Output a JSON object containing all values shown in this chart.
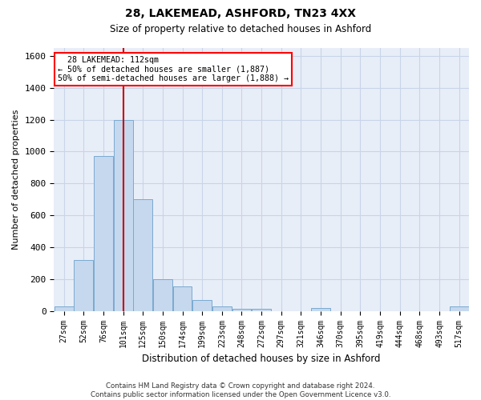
{
  "title_line1": "28, LAKEMEAD, ASHFORD, TN23 4XX",
  "title_line2": "Size of property relative to detached houses in Ashford",
  "xlabel": "Distribution of detached houses by size in Ashford",
  "ylabel": "Number of detached properties",
  "annotation_line1": "  28 LAKEMEAD: 112sqm  ",
  "annotation_line2": "← 50% of detached houses are smaller (1,887)",
  "annotation_line3": "50% of semi-detached houses are larger (1,888) →",
  "property_line_x": 3,
  "bar_color": "#c5d8ee",
  "bar_edge_color": "#7aaad0",
  "grid_color": "#c8d4e8",
  "background_color": "#e8eef8",
  "vline_color": "#cc0000",
  "categories": [
    "27sqm",
    "52sqm",
    "76sqm",
    "101sqm",
    "125sqm",
    "150sqm",
    "174sqm",
    "199sqm",
    "223sqm",
    "248sqm",
    "272sqm",
    "297sqm",
    "321sqm",
    "346sqm",
    "370sqm",
    "395sqm",
    "419sqm",
    "444sqm",
    "468sqm",
    "493sqm",
    "517sqm"
  ],
  "values": [
    30,
    320,
    970,
    1200,
    700,
    200,
    155,
    70,
    30,
    15,
    15,
    0,
    0,
    20,
    0,
    0,
    0,
    0,
    0,
    0,
    30
  ],
  "ylim": [
    0,
    1650
  ],
  "yticks": [
    0,
    200,
    400,
    600,
    800,
    1000,
    1200,
    1400,
    1600
  ],
  "footer_line1": "Contains HM Land Registry data © Crown copyright and database right 2024.",
  "footer_line2": "Contains public sector information licensed under the Open Government Licence v3.0."
}
